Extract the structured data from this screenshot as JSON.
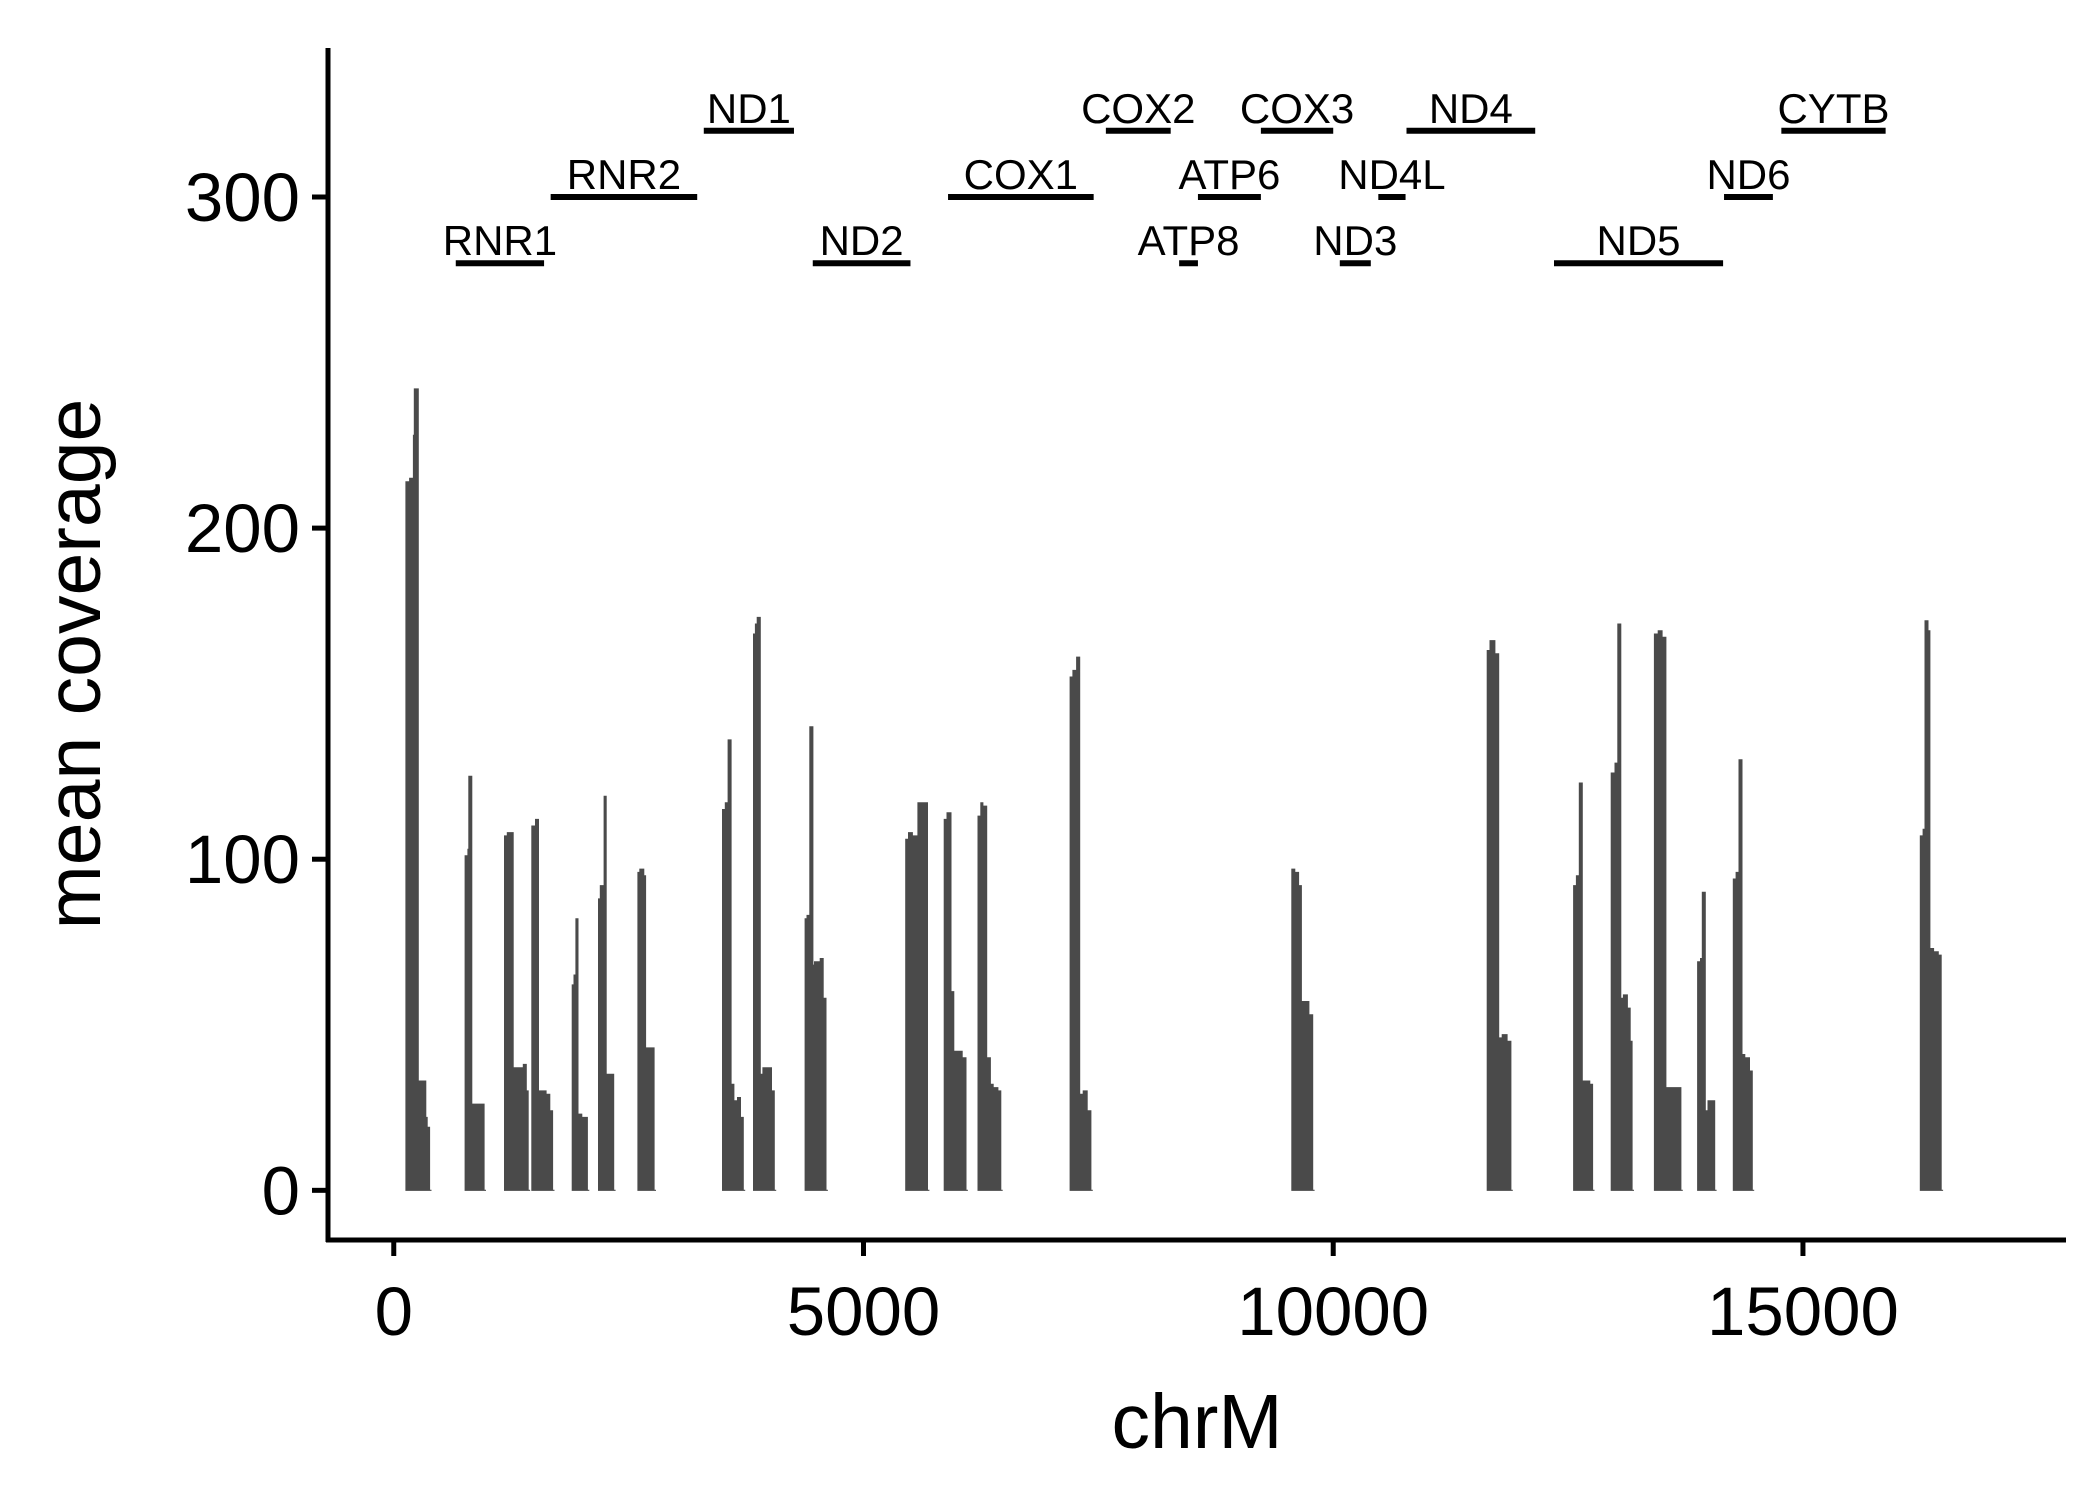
{
  "chart_data": {
    "type": "area",
    "title": "",
    "xlabel": "chrM",
    "ylabel": "mean coverage",
    "xlim": [
      -700,
      17800
    ],
    "ylim": [
      -15,
      345
    ],
    "x_ticks": [
      0,
      5000,
      10000,
      15000
    ],
    "x_tick_labels": [
      "0",
      "5000",
      "10000",
      "15000"
    ],
    "y_ticks": [
      0,
      100,
      200,
      300
    ],
    "y_tick_labels": [
      "0",
      "100",
      "200",
      "300"
    ],
    "grid": false,
    "legend": "none",
    "colors": {
      "coverage": "#4a4a4a",
      "gene_bar": "#000000",
      "axis": "#000000"
    },
    "coverage_blocks": [
      {
        "x": [
          130,
          170,
          210,
          220,
          260,
          300,
          310,
          340,
          355,
          380
        ],
        "y": [
          214,
          215,
          228,
          242,
          33,
          32,
          33,
          22,
          19,
          0
        ]
      },
      {
        "x": [
          760,
          790,
          800,
          830,
          870,
          880,
          960
        ],
        "y": [
          101,
          103,
          125,
          26,
          26,
          26,
          0
        ]
      },
      {
        "x": [
          1180,
          1210,
          1270,
          1320,
          1380,
          1410,
          1430
        ],
        "y": [
          107,
          108,
          37,
          37,
          38,
          30,
          0
        ]
      },
      {
        "x": [
          1470,
          1510,
          1540,
          1580,
          1620,
          1660,
          1690
        ],
        "y": [
          110,
          112,
          30,
          30,
          29,
          24,
          0
        ]
      },
      {
        "x": [
          1900,
          1920,
          1940,
          1960,
          2000,
          2060
        ],
        "y": [
          62,
          65,
          82,
          23,
          22,
          0
        ]
      },
      {
        "x": [
          2180,
          2200,
          2240,
          2260,
          2290,
          2340
        ],
        "y": [
          88,
          92,
          119,
          35,
          35,
          0
        ]
      },
      {
        "x": [
          2600,
          2620,
          2660,
          2680,
          2720,
          2770
        ],
        "y": [
          96,
          97,
          95,
          43,
          43,
          0
        ]
      },
      {
        "x": [
          3500,
          3530,
          3560,
          3590,
          3620,
          3660,
          3690,
          3720
        ],
        "y": [
          115,
          117,
          136,
          32,
          27,
          28,
          22,
          0
        ]
      },
      {
        "x": [
          3830,
          3850,
          3870,
          3900,
          3930,
          3980,
          4020,
          4050
        ],
        "y": [
          168,
          171,
          173,
          35,
          37,
          37,
          30,
          0
        ]
      },
      {
        "x": [
          4380,
          4400,
          4430,
          4460,
          4480,
          4540,
          4570,
          4600
        ],
        "y": [
          82,
          83,
          140,
          68,
          69,
          70,
          58,
          0
        ]
      },
      {
        "x": [
          5450,
          5480,
          5520,
          5580,
          5640,
          5680
        ],
        "y": [
          106,
          108,
          107,
          117,
          117,
          0
        ]
      },
      {
        "x": [
          5860,
          5890,
          5930,
          5960,
          6000,
          6050,
          6090
        ],
        "y": [
          112,
          114,
          60,
          42,
          42,
          40,
          0
        ]
      },
      {
        "x": [
          6220,
          6250,
          6270,
          6310,
          6350,
          6380,
          6430,
          6460
        ],
        "y": [
          113,
          117,
          116,
          40,
          32,
          31,
          30,
          0
        ]
      },
      {
        "x": [
          7200,
          7230,
          7270,
          7300,
          7340,
          7380,
          7420
        ],
        "y": [
          155,
          157,
          161,
          29,
          30,
          24,
          0
        ]
      },
      {
        "x": [
          9560,
          9590,
          9630,
          9660,
          9700,
          9740,
          9780
        ],
        "y": [
          97,
          96,
          92,
          57,
          57,
          53,
          0
        ]
      },
      {
        "x": [
          11640,
          11670,
          11720,
          11760,
          11800,
          11850,
          11890
        ],
        "y": [
          163,
          166,
          162,
          46,
          47,
          45,
          0
        ]
      },
      {
        "x": [
          12560,
          12590,
          12620,
          12650,
          12680,
          12730,
          12760
        ],
        "y": [
          92,
          95,
          123,
          33,
          33,
          32,
          0
        ]
      },
      {
        "x": [
          12960,
          13000,
          13030,
          13060,
          13090,
          13130,
          13160,
          13180
        ],
        "y": [
          126,
          129,
          171,
          58,
          59,
          55,
          45,
          0
        ]
      },
      {
        "x": [
          13420,
          13460,
          13500,
          13540,
          13600,
          13660,
          13700
        ],
        "y": [
          168,
          169,
          167,
          31,
          31,
          31,
          0
        ]
      },
      {
        "x": [
          13880,
          13910,
          13930,
          13960,
          13990,
          14030,
          14060
        ],
        "y": [
          69,
          70,
          90,
          24,
          27,
          27,
          0
        ]
      },
      {
        "x": [
          14260,
          14290,
          14320,
          14350,
          14380,
          14430,
          14460
        ],
        "y": [
          94,
          96,
          130,
          41,
          40,
          36,
          0
        ]
      },
      {
        "x": [
          16250,
          16280,
          16300,
          16330,
          16350,
          16390,
          16440,
          16470
        ],
        "y": [
          107,
          109,
          172,
          169,
          73,
          72,
          71,
          0
        ]
      }
    ],
    "genes": [
      {
        "name": "RNR1",
        "start": 660,
        "end": 1600,
        "level": 280
      },
      {
        "name": "RNR2",
        "start": 1670,
        "end": 3230,
        "level": 300
      },
      {
        "name": "ND1",
        "start": 3300,
        "end": 4260,
        "level": 320
      },
      {
        "name": "ND2",
        "start": 4460,
        "end": 5500,
        "level": 280
      },
      {
        "name": "COX1",
        "start": 5900,
        "end": 7450,
        "level": 300
      },
      {
        "name": "COX2",
        "start": 7580,
        "end": 8270,
        "level": 320
      },
      {
        "name": "ATP8",
        "start": 8360,
        "end": 8560,
        "level": 280
      },
      {
        "name": "ATP6",
        "start": 8560,
        "end": 9230,
        "level": 300
      },
      {
        "name": "COX3",
        "start": 9230,
        "end": 10000,
        "level": 320
      },
      {
        "name": "ND3",
        "start": 10070,
        "end": 10400,
        "level": 280
      },
      {
        "name": "ND4L",
        "start": 10480,
        "end": 10770,
        "level": 300
      },
      {
        "name": "ND4",
        "start": 10780,
        "end": 12150,
        "level": 320
      },
      {
        "name": "ND5",
        "start": 12350,
        "end": 14150,
        "level": 280
      },
      {
        "name": "ND6",
        "start": 14160,
        "end": 14680,
        "level": 300
      },
      {
        "name": "CYTB",
        "start": 14770,
        "end": 15880,
        "level": 320
      }
    ]
  }
}
